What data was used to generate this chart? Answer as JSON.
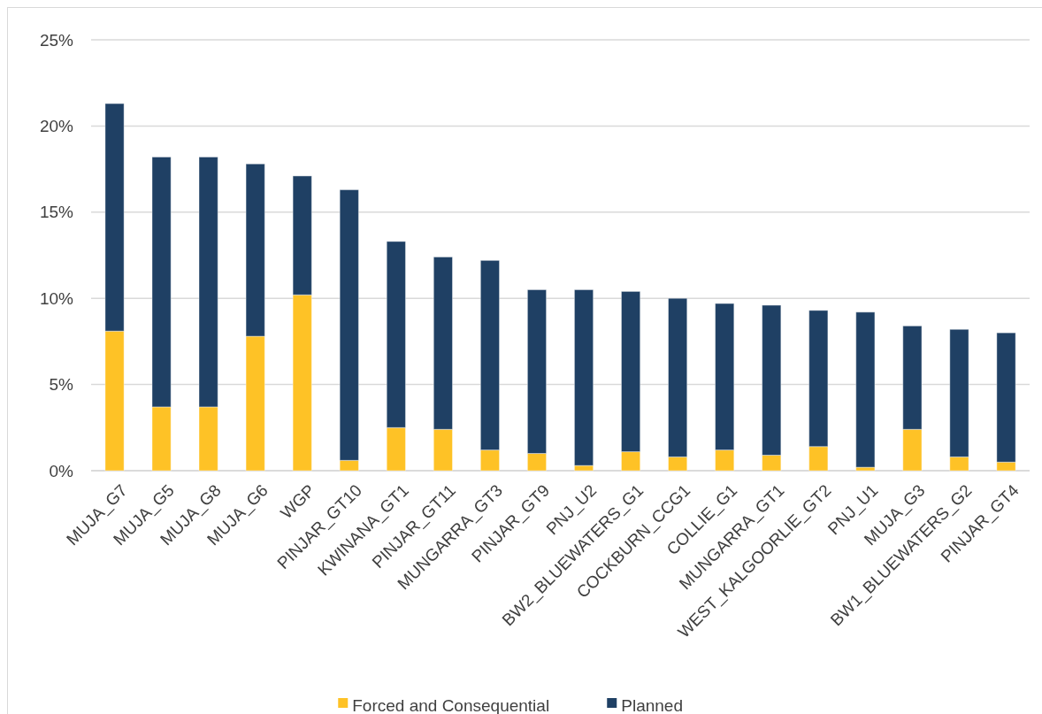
{
  "chart_data": {
    "type": "bar",
    "stacked": true,
    "categories": [
      "MUJA_G7",
      "MUJA_G5",
      "MUJA_G8",
      "MUJA_G6",
      "WGP",
      "PINJAR_GT10",
      "KWINANA_GT1",
      "PINJAR_GT11",
      "MUNGARRA_GT3",
      "PINJAR_GT9",
      "PNJ_U2",
      "BW2_BLUEWATERS_G1",
      "COCKBURN_CCG1",
      "COLLIE_G1",
      "MUNGARRA_GT1",
      "WEST_KALGOORLIE_GT2",
      "PNJ_U1",
      "MUJA_G3",
      "BW1_BLUEWATERS_G2",
      "PINJAR_GT4"
    ],
    "series": [
      {
        "name": "Forced and Consequential",
        "color": "#fec226",
        "values": [
          8.1,
          3.7,
          3.7,
          7.8,
          10.2,
          0.6,
          2.5,
          2.4,
          1.2,
          1.0,
          0.3,
          1.1,
          0.8,
          1.2,
          0.9,
          1.4,
          0.2,
          2.4,
          0.8,
          0.5
        ]
      },
      {
        "name": "Planned",
        "color": "#1f4064",
        "values": [
          13.2,
          14.5,
          14.5,
          10.0,
          6.9,
          15.7,
          10.8,
          10.0,
          11.0,
          9.5,
          10.2,
          9.3,
          9.2,
          8.5,
          8.7,
          7.9,
          9.0,
          6.0,
          7.4,
          7.5
        ]
      }
    ],
    "ylim": [
      0,
      25
    ],
    "yticks": [
      {
        "value": 0,
        "label": "0%"
      },
      {
        "value": 5,
        "label": "5%"
      },
      {
        "value": 10,
        "label": "10%"
      },
      {
        "value": 15,
        "label": "15%"
      },
      {
        "value": 20,
        "label": "20%"
      },
      {
        "value": 25,
        "label": "25%"
      }
    ],
    "grid": "y",
    "legend": "bottom"
  }
}
